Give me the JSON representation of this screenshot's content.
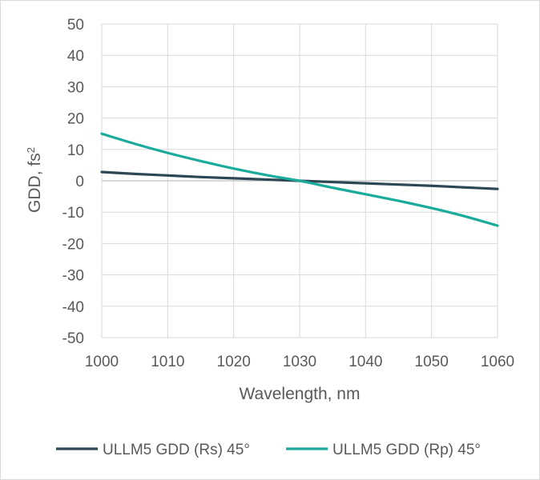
{
  "chart_data": {
    "type": "line",
    "xlabel": "Wavelength, nm",
    "ylabel": "GDD, fs",
    "ylabel_superscript": "2",
    "xlim": [
      1000,
      1060
    ],
    "ylim": [
      -50,
      50
    ],
    "xticks": [
      "1000",
      "1010",
      "1020",
      "1030",
      "1040",
      "1050",
      "1060"
    ],
    "yticks": [
      "50",
      "40",
      "30",
      "20",
      "10",
      "0",
      "-10",
      "-20",
      "-30",
      "-40",
      "-50"
    ],
    "grid": true,
    "legend_position": "bottom",
    "series": [
      {
        "name": "ULLM5 GDD (Rs) 45°",
        "color": "#2e4755",
        "x": [
          1000,
          1005,
          1010,
          1015,
          1020,
          1025,
          1030,
          1035,
          1040,
          1045,
          1050,
          1055,
          1060
        ],
        "y": [
          2.8,
          2.2,
          1.7,
          1.2,
          0.8,
          0.4,
          0.0,
          -0.4,
          -0.8,
          -1.2,
          -1.6,
          -2.1,
          -2.6
        ]
      },
      {
        "name": "ULLM5 GDD (Rp) 45°",
        "color": "#1aab9b",
        "x": [
          1000,
          1005,
          1010,
          1015,
          1020,
          1025,
          1030,
          1035,
          1040,
          1045,
          1050,
          1055,
          1060
        ],
        "y": [
          15.0,
          11.8,
          8.9,
          6.3,
          3.9,
          1.8,
          0.0,
          -2.2,
          -4.3,
          -6.4,
          -8.7,
          -11.3,
          -14.3
        ]
      }
    ]
  }
}
